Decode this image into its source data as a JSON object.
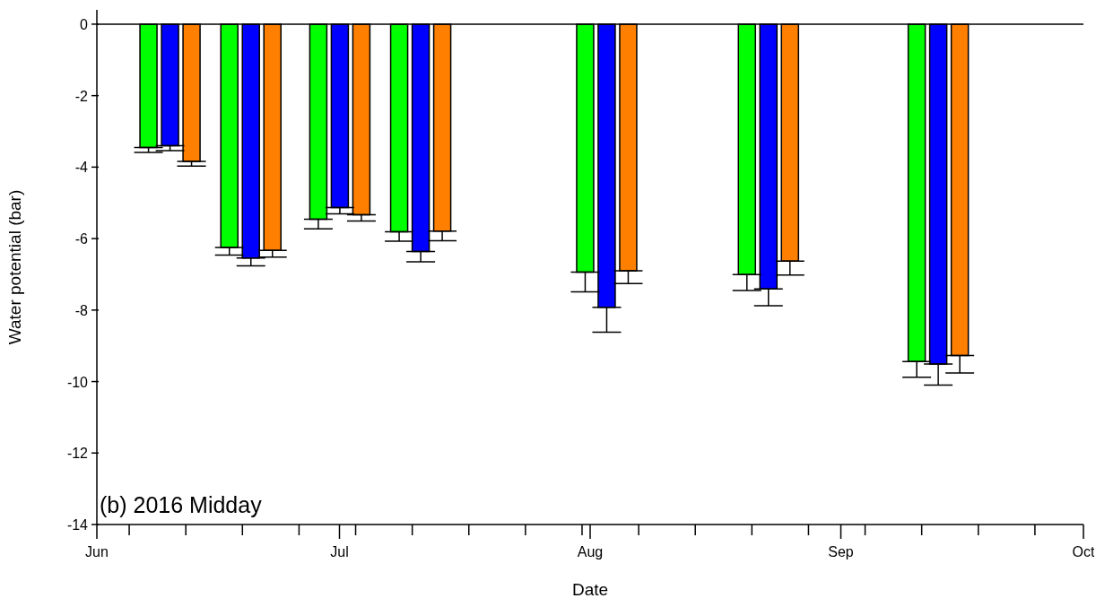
{
  "chart_data": {
    "type": "bar",
    "xlabel": "Date",
    "ylabel": "Water potential (bar)",
    "annotations": [
      "(b) 2016 Midday"
    ],
    "x": [
      "2016-06-10",
      "2016-06-20",
      "2016-07-01",
      "2016-07-11",
      "2016-08-03",
      "2016-08-23",
      "2016-09-13"
    ],
    "series": [
      {
        "color": "#00ff00",
        "values": [
          -3.45,
          -6.25,
          -5.46,
          -5.81,
          -6.94,
          -7.01,
          -9.44
        ],
        "errors": [
          [
            -3.59,
            -3.45
          ],
          [
            -6.46,
            -6.25
          ],
          [
            -5.73,
            -5.46
          ],
          [
            -6.07,
            -5.81
          ],
          [
            -7.49,
            -6.94
          ],
          [
            -7.45,
            -7.01
          ],
          [
            -9.88,
            -9.44
          ]
        ]
      },
      {
        "color": "#0000ff",
        "values": [
          -3.4,
          -6.54,
          -5.13,
          -6.36,
          -7.92,
          -7.41,
          -9.51
        ],
        "errors": [
          [
            -3.54,
            -3.4
          ],
          [
            -6.76,
            -6.54
          ],
          [
            -5.31,
            -5.13
          ],
          [
            -6.65,
            -6.36
          ],
          [
            -8.62,
            -7.92
          ],
          [
            -7.88,
            -7.41
          ],
          [
            -10.1,
            -9.51
          ]
        ]
      },
      {
        "color": "#ff8000",
        "values": [
          -3.84,
          -6.33,
          -5.33,
          -5.79,
          -6.9,
          -6.63,
          -9.27
        ],
        "errors": [
          [
            -3.97,
            -3.84
          ],
          [
            -6.52,
            -6.33
          ],
          [
            -5.51,
            -5.33
          ],
          [
            -6.06,
            -5.79
          ],
          [
            -7.26,
            -6.9
          ],
          [
            -7.02,
            -6.63
          ],
          [
            -9.76,
            -9.27
          ]
        ]
      }
    ],
    "xlim": [
      "2016-06-01",
      "2016-10-01"
    ],
    "xticks": [
      {
        "value": "2016-06-01",
        "label": "Jun"
      },
      {
        "value": "2016-06-05",
        "label": null
      },
      {
        "value": "2016-06-12",
        "label": null
      },
      {
        "value": "2016-06-19",
        "label": null
      },
      {
        "value": "2016-06-26",
        "label": null
      },
      {
        "value": "2016-07-01",
        "label": "Jul"
      },
      {
        "value": "2016-07-03",
        "label": null
      },
      {
        "value": "2016-07-10",
        "label": null
      },
      {
        "value": "2016-07-17",
        "label": null
      },
      {
        "value": "2016-07-24",
        "label": null
      },
      {
        "value": "2016-07-31",
        "label": null
      },
      {
        "value": "2016-08-01",
        "label": "Aug"
      },
      {
        "value": "2016-08-07",
        "label": null
      },
      {
        "value": "2016-08-14",
        "label": null
      },
      {
        "value": "2016-08-21",
        "label": null
      },
      {
        "value": "2016-08-28",
        "label": null
      },
      {
        "value": "2016-09-01",
        "label": "Sep"
      },
      {
        "value": "2016-09-04",
        "label": null
      },
      {
        "value": "2016-09-11",
        "label": null
      },
      {
        "value": "2016-09-18",
        "label": null
      },
      {
        "value": "2016-09-25",
        "label": null
      },
      {
        "value": "2016-10-01",
        "label": "Oct"
      }
    ],
    "ylim": [
      -14,
      0.4
    ],
    "yticks": [
      -14,
      -12,
      -10,
      -8,
      -6,
      -4,
      -2,
      0
    ],
    "ref_lines": [
      {
        "axis": "y",
        "value": 0,
        "color": "#000000"
      }
    ],
    "grid": false,
    "legend": false
  }
}
